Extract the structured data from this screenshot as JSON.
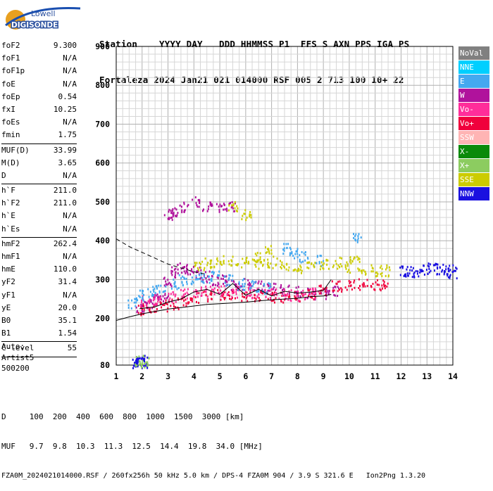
{
  "logo": {
    "line1": "Lowell",
    "line2": "DIGISONDE"
  },
  "header": {
    "line1": "Station    YYYY DAY   DDD HHMMSS P1  FFS S AXN PPS IGA PS",
    "line2": "Fortaleza 2024 Jan21 021 014000 RSF 005 2 713 100 10+ 22"
  },
  "params": [
    {
      "name": "foF2",
      "value": "9.300"
    },
    {
      "name": "foF1",
      "value": "N/A"
    },
    {
      "name": "foF1p",
      "value": "N/A"
    },
    {
      "name": "foE",
      "value": "N/A"
    },
    {
      "name": "foEp",
      "value": "0.54"
    },
    {
      "name": "fxI",
      "value": "10.25"
    },
    {
      "name": "foEs",
      "value": "N/A"
    },
    {
      "name": "fmin",
      "value": "1.75"
    },
    {
      "name": "MUF(D)",
      "value": "33.99",
      "sep_before": true
    },
    {
      "name": "M(D)",
      "value": "3.65"
    },
    {
      "name": "D",
      "value": "N/A"
    },
    {
      "name": "h`F",
      "value": "211.0",
      "sep_before": true
    },
    {
      "name": "h`F2",
      "value": "211.0"
    },
    {
      "name": "h`E",
      "value": "N/A"
    },
    {
      "name": "h`Es",
      "value": "N/A"
    },
    {
      "name": "hmF2",
      "value": "262.4",
      "sep_before": true
    },
    {
      "name": "hmF1",
      "value": "N/A"
    },
    {
      "name": "hmE",
      "value": "110.0"
    },
    {
      "name": "yF2",
      "value": "31.4"
    },
    {
      "name": "yF1",
      "value": "N/A"
    },
    {
      "name": "yE",
      "value": "20.0"
    },
    {
      "name": "B0",
      "value": "35.1"
    },
    {
      "name": "B1",
      "value": "1.54"
    },
    {
      "name": "C-level",
      "value": "55",
      "sep_before": true
    }
  ],
  "auto": {
    "label": "Auto:",
    "artist": "Artist5",
    "version": "500200"
  },
  "legend": [
    {
      "label": "NoVal",
      "color": "#808080"
    },
    {
      "label": "NNE",
      "color": "#00cfff"
    },
    {
      "label": "E",
      "color": "#44a8f0"
    },
    {
      "label": "W",
      "color": "#b0129c"
    },
    {
      "label": "Vo-",
      "color": "#ff2d9a"
    },
    {
      "label": "Vo+",
      "color": "#f0003c"
    },
    {
      "label": "SSW",
      "color": "#ffb4b4"
    },
    {
      "label": "X-",
      "color": "#0a8a0a"
    },
    {
      "label": "X+",
      "color": "#8ccc60"
    },
    {
      "label": "SSE",
      "color": "#cccc00"
    },
    {
      "label": "NNW",
      "color": "#1a10e0"
    }
  ],
  "footer": {
    "line1": "D     100  200  400  600  800  1000  1500  3000 [km]",
    "line2": "MUF   9.7  9.8  10.3  11.3  12.5  14.4  19.8  34.0 [MHz]",
    "line3": "FZA0M_2024021014000.RSF / 260fx256h 50 kHz 5.0 km / DPS-4 FZA0M 904 / 3.9 S 321.6 E   Ion2Png 1.3.20"
  },
  "chart_data": {
    "type": "scatter",
    "xlabel": "",
    "ylabel": "",
    "xlim": [
      1,
      14
    ],
    "ylim": [
      80,
      900
    ],
    "x_ticks": [
      1,
      2,
      3,
      4,
      5,
      6,
      7,
      8,
      9,
      10,
      11,
      12,
      13,
      14
    ],
    "y_ticks": [
      80,
      200,
      300,
      400,
      500,
      600,
      700,
      800,
      900
    ],
    "grid": true,
    "legend_position": "right",
    "traces": [
      {
        "pol": "W",
        "points": [
          [
            1.9,
            230
          ],
          [
            2.2,
            240
          ],
          [
            2.5,
            250
          ],
          [
            2.8,
            260
          ],
          [
            3.0,
            300
          ],
          [
            3.2,
            320
          ],
          [
            3.5,
            330
          ],
          [
            3.8,
            330
          ],
          [
            4.1,
            320
          ],
          [
            4.4,
            310
          ],
          [
            4.8,
            300
          ],
          [
            5.2,
            300
          ],
          [
            5.6,
            290
          ],
          [
            6.0,
            290
          ],
          [
            6.5,
            285
          ],
          [
            7.0,
            280
          ],
          [
            7.5,
            275
          ],
          [
            8.0,
            270
          ],
          [
            8.5,
            265
          ],
          [
            9.0,
            265
          ],
          [
            9.4,
            270
          ]
        ]
      },
      {
        "pol": "Vo+",
        "points": [
          [
            2.0,
            225
          ],
          [
            2.4,
            230
          ],
          [
            2.8,
            235
          ],
          [
            3.2,
            240
          ],
          [
            3.6,
            248
          ],
          [
            4.0,
            255
          ],
          [
            4.5,
            260
          ],
          [
            5.0,
            262
          ],
          [
            5.5,
            262
          ],
          [
            6.0,
            260
          ],
          [
            6.5,
            258
          ],
          [
            7.0,
            255
          ],
          [
            7.5,
            255
          ],
          [
            8.0,
            258
          ],
          [
            8.5,
            265
          ],
          [
            9.0,
            275
          ],
          [
            9.5,
            285
          ],
          [
            10.0,
            290
          ],
          [
            10.5,
            290
          ],
          [
            11.0,
            288
          ],
          [
            11.3,
            288
          ]
        ]
      },
      {
        "pol": "Vo-",
        "points": [
          [
            2.1,
            245
          ],
          [
            2.6,
            250
          ],
          [
            3.1,
            258
          ],
          [
            3.6,
            265
          ],
          [
            4.1,
            270
          ],
          [
            4.6,
            272
          ],
          [
            5.1,
            272
          ],
          [
            5.6,
            270
          ],
          [
            6.1,
            268
          ],
          [
            6.6,
            266
          ],
          [
            7.1,
            264
          ],
          [
            7.6,
            262
          ],
          [
            8.1,
            262
          ],
          [
            8.6,
            268
          ]
        ]
      },
      {
        "pol": "E",
        "points": [
          [
            1.6,
            240
          ],
          [
            1.9,
            260
          ],
          [
            2.3,
            270
          ],
          [
            2.7,
            280
          ],
          [
            3.2,
            290
          ],
          [
            3.6,
            300
          ],
          [
            4.0,
            300
          ],
          [
            4.4,
            305
          ],
          [
            4.8,
            310
          ],
          [
            5.3,
            300
          ],
          [
            5.8,
            290
          ],
          [
            6.3,
            285
          ],
          [
            6.8,
            280
          ],
          [
            7.6,
            380
          ],
          [
            7.8,
            370
          ],
          [
            8.2,
            360
          ],
          [
            8.8,
            350
          ],
          [
            10.3,
            410
          ]
        ]
      },
      {
        "pol": "SSE",
        "points": [
          [
            4.2,
            340
          ],
          [
            4.6,
            345
          ],
          [
            5.0,
            350
          ],
          [
            5.5,
            350
          ],
          [
            6.0,
            345
          ],
          [
            6.5,
            345
          ],
          [
            7.0,
            345
          ],
          [
            7.5,
            340
          ],
          [
            8.0,
            330
          ],
          [
            8.5,
            335
          ],
          [
            9.0,
            340
          ],
          [
            9.5,
            345
          ],
          [
            10.0,
            335
          ],
          [
            10.5,
            330
          ],
          [
            11.0,
            325
          ],
          [
            11.4,
            325
          ]
        ]
      },
      {
        "pol": "NNW",
        "points": [
          [
            12.1,
            325
          ],
          [
            12.3,
            322
          ],
          [
            12.6,
            322
          ],
          [
            12.9,
            325
          ],
          [
            13.2,
            330
          ],
          [
            13.5,
            330
          ],
          [
            13.8,
            325
          ],
          [
            13.95,
            320
          ]
        ]
      },
      {
        "pol": "W",
        "points": [
          [
            3.0,
            470
          ],
          [
            3.3,
            480
          ],
          [
            3.6,
            490
          ],
          [
            4.0,
            500
          ],
          [
            4.5,
            490
          ],
          [
            5.0,
            485
          ],
          [
            5.4,
            490
          ]
        ]
      },
      {
        "pol": "SSE",
        "points": [
          [
            5.5,
            490
          ],
          [
            6.0,
            470
          ],
          [
            6.4,
            360
          ],
          [
            6.9,
            375
          ],
          [
            10.2,
            360
          ]
        ]
      },
      {
        "pol": "NNW",
        "points": [
          [
            1.7,
            88
          ],
          [
            1.8,
            90
          ],
          [
            1.9,
            92
          ],
          [
            2.0,
            88
          ]
        ]
      },
      {
        "pol": "X+",
        "points": [
          [
            1.85,
            95
          ],
          [
            2.05,
            90
          ]
        ]
      }
    ],
    "curves": [
      {
        "style": "solid",
        "x": [
          1.0,
          1.5,
          2.0,
          2.5,
          3.0,
          3.5,
          4.0,
          4.5,
          5.0,
          5.5,
          6.0,
          6.5,
          7.0,
          7.5,
          8.0,
          8.5,
          9.0,
          9.3
        ],
        "y": [
          195,
          204,
          212,
          218,
          224,
          228,
          232,
          236,
          238,
          240,
          242,
          245,
          248,
          250,
          252,
          256,
          258,
          262
        ]
      },
      {
        "style": "solid",
        "x": [
          1.9,
          2.5,
          3.0,
          3.5,
          4.0,
          4.5,
          5.0,
          5.5,
          6.0,
          6.5,
          7.0,
          7.5,
          8.0,
          8.5,
          9.0,
          9.3
        ],
        "y": [
          225,
          230,
          242,
          250,
          268,
          275,
          262,
          290,
          260,
          275,
          258,
          270,
          265,
          268,
          272,
          300
        ]
      },
      {
        "style": "dashed",
        "x": [
          1.0,
          1.5,
          2.0,
          2.5,
          3.0,
          3.5,
          4.0,
          4.4
        ],
        "y": [
          405,
          385,
          370,
          355,
          340,
          330,
          320,
          315
        ]
      }
    ]
  }
}
